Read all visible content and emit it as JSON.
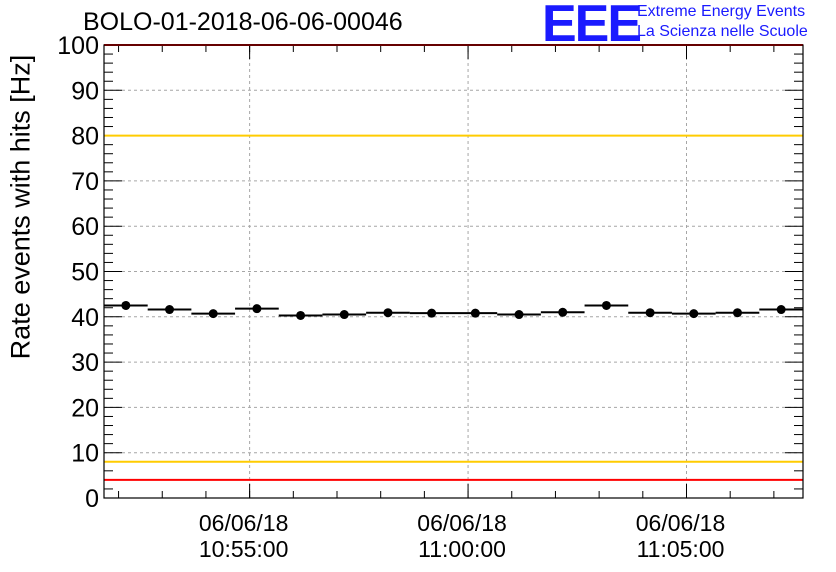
{
  "chart_data": {
    "type": "scatter",
    "title": "BOLO-01-2018-06-06-00046",
    "ylabel": "Rate events with hits [Hz]",
    "xlabel": "",
    "ylim": [
      0,
      100
    ],
    "yticks": [
      0,
      10,
      20,
      30,
      40,
      50,
      60,
      70,
      80,
      90,
      100
    ],
    "x_axis_type": "time",
    "xlim": [
      "06/06/18 10:51:40",
      "06/06/18 11:07:40"
    ],
    "xticks": [
      {
        "t": "06/06/18 10:55:00",
        "date": "06/06/18",
        "time": "10:55:00"
      },
      {
        "t": "06/06/18 11:00:00",
        "date": "06/06/18",
        "time": "11:00:00"
      },
      {
        "t": "06/06/18 11:05:00",
        "date": "06/06/18",
        "time": "11:05:00"
      }
    ],
    "bin_width_seconds": 60,
    "grid": true,
    "reference_lines": [
      {
        "y": 100,
        "color": "#ff0000"
      },
      {
        "y": 80,
        "color": "#ffcc00"
      },
      {
        "y": 8,
        "color": "#ffcc00"
      },
      {
        "y": 4,
        "color": "#ff0000"
      }
    ],
    "series": [
      {
        "x": [
          "10:52:10",
          "10:53:10",
          "10:54:10",
          "10:55:10",
          "10:56:10",
          "10:57:10",
          "10:58:10",
          "10:59:10",
          "11:00:10",
          "11:01:10",
          "11:02:10",
          "11:03:10",
          "11:04:10",
          "11:05:10",
          "11:06:10",
          "11:07:10"
        ],
        "values": [
          42.5,
          41.6,
          40.7,
          41.8,
          40.3,
          40.5,
          40.9,
          40.8,
          40.8,
          40.5,
          41.0,
          42.5,
          40.9,
          40.7,
          40.9,
          41.6
        ],
        "color": "#000000"
      }
    ]
  },
  "logo": {
    "mark": "EEE",
    "line1": "Extreme Energy Events",
    "line2": "La Scienza nelle Scuole",
    "color": "#1a1aff"
  }
}
